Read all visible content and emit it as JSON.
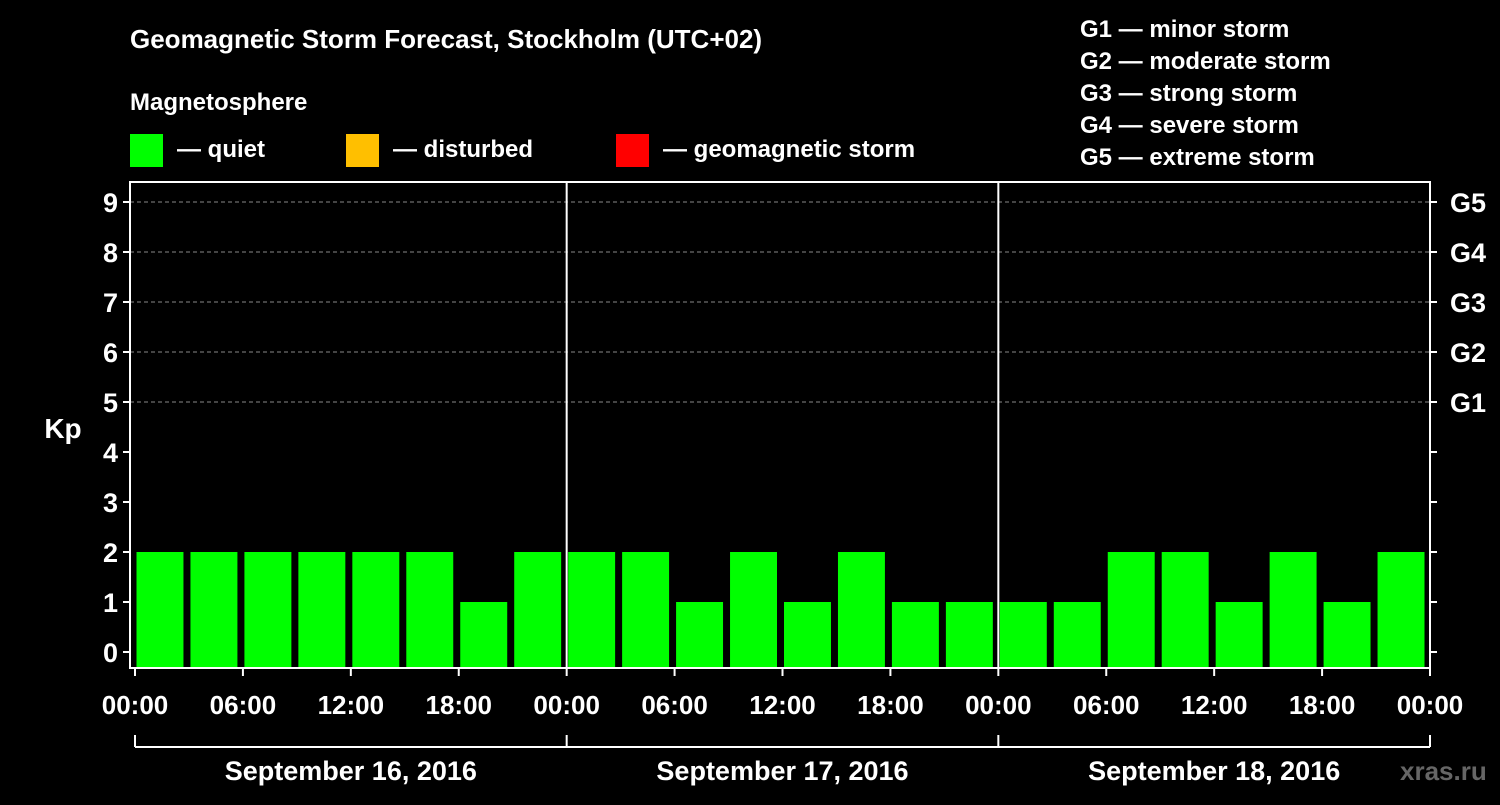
{
  "chart_data": {
    "type": "bar",
    "title": "Geomagnetic Storm Forecast, Stockholm (UTC+02)",
    "ylabel": "Kp",
    "ylim": [
      0,
      9
    ],
    "yticks": [
      0,
      1,
      2,
      3,
      4,
      5,
      6,
      7,
      8,
      9
    ],
    "grid": "dashed horizontal lines at 5-9",
    "x_start": "2016-09-16T00:00",
    "x_end": "2016-09-19T00:00",
    "xtick_labels": [
      "00:00",
      "06:00",
      "12:00",
      "18:00",
      "00:00",
      "06:00",
      "12:00",
      "18:00",
      "00:00",
      "06:00",
      "12:00",
      "18:00",
      "00:00"
    ],
    "day_labels": [
      "September 16, 2016",
      "September 17, 2016",
      "September 18, 2016"
    ],
    "storm_levels": [
      {
        "label": "G1",
        "kp": 5
      },
      {
        "label": "G2",
        "kp": 6
      },
      {
        "label": "G3",
        "kp": 7
      },
      {
        "label": "G4",
        "kp": 8
      },
      {
        "label": "G5",
        "kp": 9
      }
    ],
    "bars": [
      {
        "start": "2016-09-16T00:00",
        "end": "2016-09-16T03:00",
        "kp": 2
      },
      {
        "start": "2016-09-16T03:00",
        "end": "2016-09-16T06:00",
        "kp": 2
      },
      {
        "start": "2016-09-16T06:00",
        "end": "2016-09-16T09:00",
        "kp": 2
      },
      {
        "start": "2016-09-16T09:00",
        "end": "2016-09-16T12:00",
        "kp": 2
      },
      {
        "start": "2016-09-16T12:00",
        "end": "2016-09-16T15:00",
        "kp": 2
      },
      {
        "start": "2016-09-16T15:00",
        "end": "2016-09-16T18:00",
        "kp": 2
      },
      {
        "start": "2016-09-16T18:00",
        "end": "2016-09-16T21:00",
        "kp": 1
      },
      {
        "start": "2016-09-16T21:00",
        "end": "2016-09-17T00:00",
        "kp": 2
      },
      {
        "start": "2016-09-17T00:00",
        "end": "2016-09-17T03:00",
        "kp": 2
      },
      {
        "start": "2016-09-17T03:00",
        "end": "2016-09-17T06:00",
        "kp": 2
      },
      {
        "start": "2016-09-17T06:00",
        "end": "2016-09-17T09:00",
        "kp": 1
      },
      {
        "start": "2016-09-17T09:00",
        "end": "2016-09-17T12:00",
        "kp": 2
      },
      {
        "start": "2016-09-17T12:00",
        "end": "2016-09-17T15:00",
        "kp": 1
      },
      {
        "start": "2016-09-17T15:00",
        "end": "2016-09-17T18:00",
        "kp": 2
      },
      {
        "start": "2016-09-17T18:00",
        "end": "2016-09-17T21:00",
        "kp": 1
      },
      {
        "start": "2016-09-17T21:00",
        "end": "2016-09-18T00:00",
        "kp": 1
      },
      {
        "start": "2016-09-18T00:00",
        "end": "2016-09-18T03:00",
        "kp": 1
      },
      {
        "start": "2016-09-18T03:00",
        "end": "2016-09-18T06:00",
        "kp": 1
      },
      {
        "start": "2016-09-18T06:00",
        "end": "2016-09-18T09:00",
        "kp": 2
      },
      {
        "start": "2016-09-18T09:00",
        "end": "2016-09-18T12:00",
        "kp": 2
      },
      {
        "start": "2016-09-18T12:00",
        "end": "2016-09-18T15:00",
        "kp": 1
      },
      {
        "start": "2016-09-18T15:00",
        "end": "2016-09-18T18:00",
        "kp": 2
      },
      {
        "start": "2016-09-18T18:00",
        "end": "2016-09-18T21:00",
        "kp": 1
      },
      {
        "start": "2016-09-18T21:00",
        "end": "2016-09-18T24:00",
        "kp": 2
      }
    ]
  },
  "legend": {
    "heading": "Magnetosphere",
    "items": [
      {
        "label": "— quiet",
        "color": "#00ff00"
      },
      {
        "label": "— disturbed",
        "color": "#ffbf00"
      },
      {
        "label": "— geomagnetic storm",
        "color": "#ff0000"
      }
    ]
  },
  "storm_scale": [
    "G1 — minor storm",
    "G2 — moderate storm",
    "G3 — strong storm",
    "G4 — severe storm",
    "G5 — extreme storm"
  ],
  "watermark": "xras.ru",
  "colors": {
    "background": "#000000",
    "foreground": "#ffffff",
    "bar": "#00ff00",
    "grid": "#888888"
  }
}
